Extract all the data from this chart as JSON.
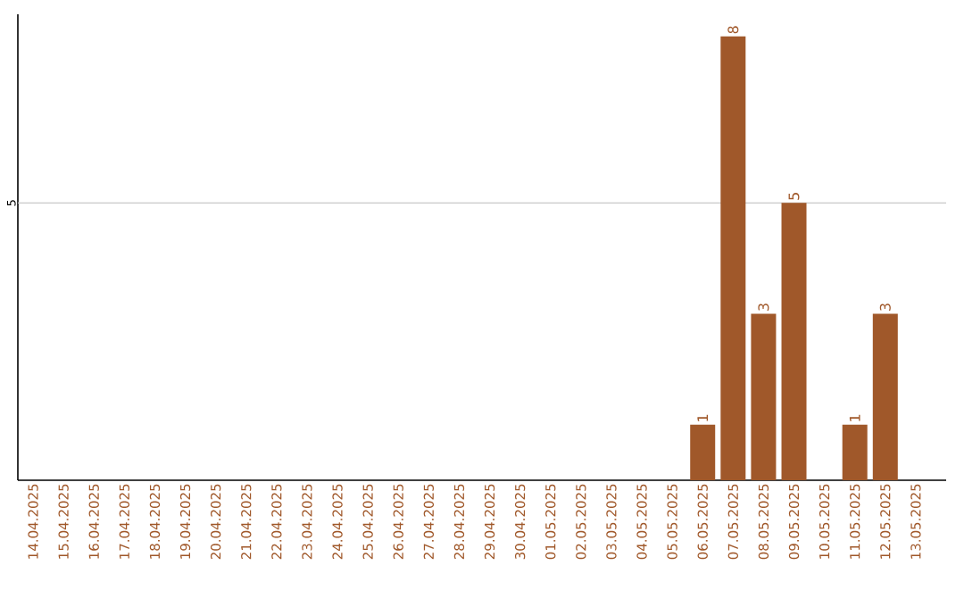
{
  "chart_data": {
    "type": "bar",
    "categories": [
      "14.04.2025",
      "15.04.2025",
      "16.04.2025",
      "17.04.2025",
      "18.04.2025",
      "19.04.2025",
      "20.04.2025",
      "21.04.2025",
      "22.04.2025",
      "23.04.2025",
      "24.04.2025",
      "25.04.2025",
      "26.04.2025",
      "27.04.2025",
      "28.04.2025",
      "29.04.2025",
      "30.04.2025",
      "01.05.2025",
      "02.05.2025",
      "03.05.2025",
      "04.05.2025",
      "05.05.2025",
      "06.05.2025",
      "07.05.2025",
      "08.05.2025",
      "09.05.2025",
      "10.05.2025",
      "11.05.2025",
      "12.05.2025",
      "13.05.2025"
    ],
    "values": [
      null,
      null,
      null,
      null,
      null,
      null,
      null,
      null,
      null,
      null,
      null,
      null,
      null,
      null,
      null,
      null,
      null,
      null,
      null,
      null,
      null,
      null,
      1,
      8,
      3,
      5,
      null,
      1,
      3,
      null
    ],
    "data_labels": true,
    "color": "#a0582a",
    "ylim": [
      0,
      8.4
    ],
    "ref_lines": [
      {
        "axis": "y",
        "value": 5,
        "label": "5",
        "color": "#c8c8c8"
      }
    ]
  }
}
